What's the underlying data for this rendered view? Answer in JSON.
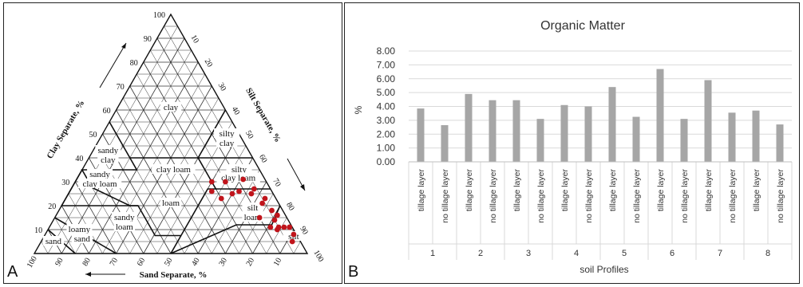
{
  "panels": {
    "a_letter": "A",
    "b_letter": "B"
  },
  "colors": {
    "bar": "#a6a6a6",
    "point": "#c0141b",
    "grid": "#d9d9d9",
    "line": "#222222"
  },
  "texture_triangle": {
    "axis_titles": {
      "clay": "Clay Separate, %",
      "silt": "Silt Separate, %",
      "sand": "Sand Separate, %"
    },
    "clay_ticks": [
      "10",
      "20",
      "30",
      "40",
      "50",
      "60",
      "70",
      "80",
      "90",
      "100"
    ],
    "silt_ticks": [
      "10",
      "20",
      "30",
      "40",
      "50",
      "60",
      "70",
      "80",
      "90",
      "100"
    ],
    "sand_ticks": [
      "10",
      "20",
      "30",
      "40",
      "50",
      "60",
      "70",
      "80",
      "90",
      "100"
    ],
    "classes": {
      "clay": "clay",
      "silty_clay_1": "silty",
      "silty_clay_2": "clay",
      "sandy_clay_1": "sandy",
      "sandy_clay_2": "clay",
      "clay_loam": "clay loam",
      "silty_clay_loam_1": "silty",
      "silty_clay_loam_2": "clay loam",
      "sandy_clay_loam_1": "sandy",
      "sandy_clay_loam_2": "clay loam",
      "loam": "loam",
      "silt_loam_1": "silt",
      "silt_loam_2": "loam",
      "sandy_loam_1": "sandy",
      "sandy_loam_2": "loam",
      "loamy_sand_1": "loamy",
      "loamy_sand_2": "sand",
      "sand": "sand",
      "silt": "silt"
    },
    "samples": [
      {
        "sand": 15,
        "clay": 30
      },
      {
        "sand": 20,
        "clay": 30
      },
      {
        "sand": 8,
        "clay": 31
      },
      {
        "sand": 22,
        "clay": 26
      },
      {
        "sand": 15,
        "clay": 25
      },
      {
        "sand": 12,
        "clay": 26
      },
      {
        "sand": 6,
        "clay": 27
      },
      {
        "sand": 8,
        "clay": 25
      },
      {
        "sand": 20,
        "clay": 23
      },
      {
        "sand": 4,
        "clay": 23
      },
      {
        "sand": 6,
        "clay": 21
      },
      {
        "sand": 4,
        "clay": 18
      },
      {
        "sand": 3,
        "clay": 16
      },
      {
        "sand": 5,
        "clay": 14
      },
      {
        "sand": 10,
        "clay": 15
      },
      {
        "sand": 8,
        "clay": 11
      },
      {
        "sand": 6,
        "clay": 10
      },
      {
        "sand": 5,
        "clay": 11
      },
      {
        "sand": 3,
        "clay": 11
      },
      {
        "sand": 1,
        "clay": 11
      },
      {
        "sand": 1,
        "clay": 8
      },
      {
        "sand": 3,
        "clay": 5
      },
      {
        "sand": 1,
        "clay": 11
      }
    ]
  },
  "chart_data": {
    "type": "bar",
    "title": "Organic Matter",
    "ylabel": "%",
    "xlabel": "soil Profiles",
    "ylim": [
      0,
      8
    ],
    "yticks": [
      "0.00",
      "1.00",
      "2.00",
      "3.00",
      "4.00",
      "5.00",
      "6.00",
      "7.00",
      "8.00"
    ],
    "grid": true,
    "groups": [
      "1",
      "2",
      "3",
      "4",
      "5",
      "6",
      "7",
      "8"
    ],
    "subcategories": [
      "tillage layer",
      "no tillage layer"
    ],
    "values": [
      [
        3.85,
        2.65
      ],
      [
        4.9,
        4.45
      ],
      [
        4.45,
        3.1
      ],
      [
        4.1,
        4.0
      ],
      [
        5.4,
        3.25
      ],
      [
        6.7,
        3.1
      ],
      [
        5.9,
        3.55
      ],
      [
        3.7,
        2.7
      ]
    ]
  }
}
